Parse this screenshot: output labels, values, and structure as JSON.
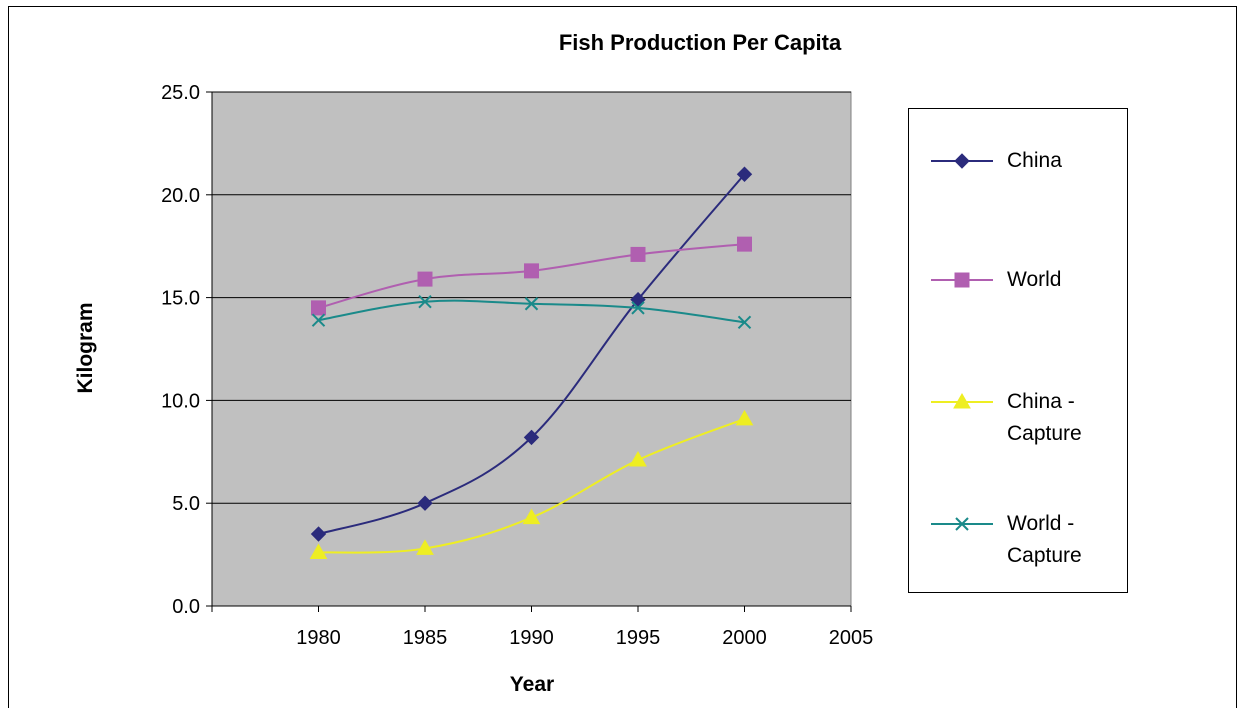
{
  "chart_data": {
    "type": "line",
    "title": "Fish Production Per Capita",
    "xlabel": "Year",
    "ylabel": "Kilogram",
    "x": [
      1980,
      1985,
      1990,
      1995,
      2000
    ],
    "xlim": [
      1975,
      2005
    ],
    "ylim": [
      0,
      25
    ],
    "x_ticks": [
      "1980",
      "1985",
      "1990",
      "1995",
      "2000",
      "2005"
    ],
    "y_ticks": [
      "0.0",
      "5.0",
      "10.0",
      "15.0",
      "20.0",
      "25.0"
    ],
    "grid": "horizontal",
    "plot_background": "#c0c0c0",
    "legend_position": "right",
    "series": [
      {
        "name": "China",
        "values": [
          3.5,
          5.0,
          8.2,
          14.9,
          21.0
        ],
        "color": "#2b2b7c",
        "marker": "diamond"
      },
      {
        "name": "World",
        "values": [
          14.5,
          15.9,
          16.3,
          17.1,
          17.6
        ],
        "color": "#b05fb0",
        "marker": "square"
      },
      {
        "name": "China - Capture",
        "values": [
          2.6,
          2.8,
          4.3,
          7.1,
          9.1
        ],
        "color": "#eeee22",
        "marker": "triangle"
      },
      {
        "name": "World - Capture",
        "values": [
          13.9,
          14.8,
          14.7,
          14.5,
          13.8
        ],
        "color": "#1a8a8a",
        "marker": "x"
      }
    ]
  },
  "legend": {
    "items": [
      {
        "label": "China"
      },
      {
        "label": "World"
      },
      {
        "label": "China -\nCapture"
      },
      {
        "label": "World -\nCapture"
      }
    ]
  }
}
